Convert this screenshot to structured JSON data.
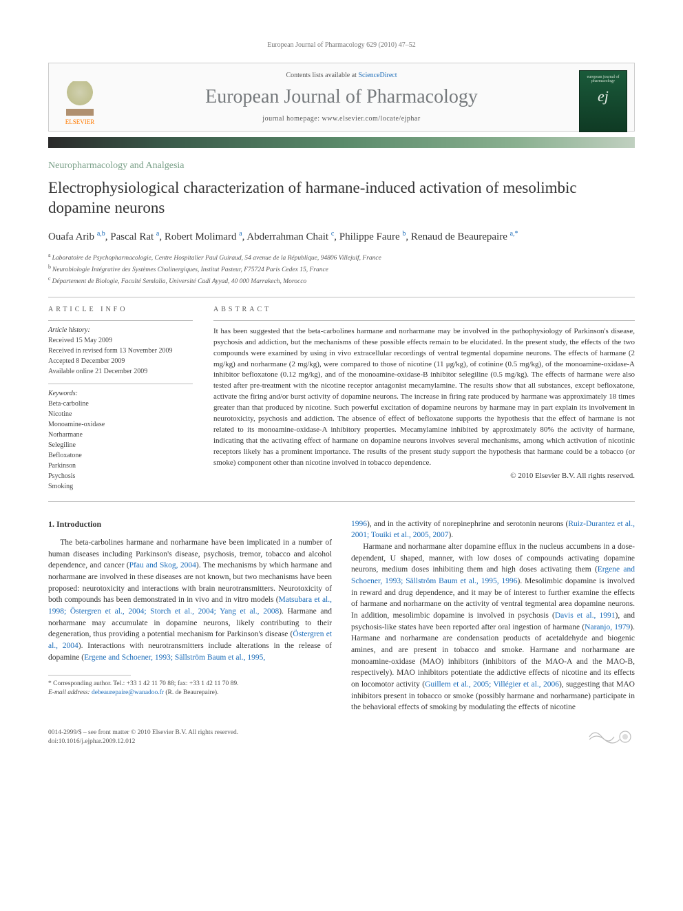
{
  "running_header": "European Journal of Pharmacology 629 (2010) 47–52",
  "banner": {
    "contents_prefix": "Contents lists available at ",
    "contents_link": "ScienceDirect",
    "journal": "European Journal of Pharmacology",
    "homepage_prefix": "journal homepage: ",
    "homepage": "www.elsevier.com/locate/ejphar",
    "publisher": "ELSEVIER",
    "cover_text_top": "european journal of",
    "cover_text_mid": "pharmacology"
  },
  "section_label": "Neuropharmacology and Analgesia",
  "title": "Electrophysiological characterization of harmane-induced activation of mesolimbic dopamine neurons",
  "authors": [
    {
      "name": "Ouafa Arib",
      "marks": "a,b"
    },
    {
      "name": "Pascal Rat",
      "marks": "a"
    },
    {
      "name": "Robert Molimard",
      "marks": "a"
    },
    {
      "name": "Abderrahman Chait",
      "marks": "c"
    },
    {
      "name": "Philippe Faure",
      "marks": "b"
    },
    {
      "name": "Renaud de Beaurepaire",
      "marks": "a,*"
    }
  ],
  "affiliations": [
    {
      "mark": "a",
      "text": "Laboratoire de Psychopharmacologie, Centre Hospitalier Paul Guiraud, 54 avenue de la République, 94806 Villejuif, France"
    },
    {
      "mark": "b",
      "text": "Neurobiologie Intégrative des Systèmes Cholinergiques, Institut Pasteur, F75724 Paris Cedex 15, France"
    },
    {
      "mark": "c",
      "text": "Département de Biologie, Faculté Semlalia, Université Cadi Ayyad, 40 000 Marrakech, Morocco"
    }
  ],
  "article_info": {
    "heading": "ARTICLE INFO",
    "history_label": "Article history:",
    "history": [
      "Received 15 May 2009",
      "Received in revised form 13 November 2009",
      "Accepted 8 December 2009",
      "Available online 21 December 2009"
    ],
    "keywords_label": "Keywords:",
    "keywords": [
      "Beta-carboline",
      "Nicotine",
      "Monoamine-oxidase",
      "Norharmane",
      "Selegiline",
      "Befloxatone",
      "Parkinson",
      "Psychosis",
      "Smoking"
    ]
  },
  "abstract": {
    "heading": "ABSTRACT",
    "text": "It has been suggested that the beta-carbolines harmane and norharmane may be involved in the pathophysiology of Parkinson's disease, psychosis and addiction, but the mechanisms of these possible effects remain to be elucidated. In the present study, the effects of the two compounds were examined by using in vivo extracellular recordings of ventral tegmental dopamine neurons. The effects of harmane (2 mg/kg) and norharmane (2 mg/kg), were compared to those of nicotine (11 μg/kg), of cotinine (0.5 mg/kg), of the monoamine-oxidase-A inhibitor befloxatone (0.12 mg/kg), and of the monoamine-oxidase-B inhibitor selegiline (0.5 mg/kg). The effects of harmane were also tested after pre-treatment with the nicotine receptor antagonist mecamylamine. The results show that all substances, except befloxatone, activate the firing and/or burst activity of dopamine neurons. The increase in firing rate produced by harmane was approximately 18 times greater than that produced by nicotine. Such powerful excitation of dopamine neurons by harmane may in part explain its involvement in neurotoxicity, psychosis and addiction. The absence of effect of befloxatone supports the hypothesis that the effect of harmane is not related to its monoamine-oxidase-A inhibitory properties. Mecamylamine inhibited by approximately 80% the activity of harmane, indicating that the activating effect of harmane on dopamine neurons involves several mechanisms, among which activation of nicotinic receptors likely has a prominent importance. The results of the present study support the hypothesis that harmane could be a tobacco (or smoke) component other than nicotine involved in tobacco dependence.",
    "copyright": "© 2010 Elsevier B.V. All rights reserved."
  },
  "intro": {
    "heading": "1. Introduction",
    "col1_p1a": "The beta-carbolines harmane and norharmane have been implicated in a number of human diseases including Parkinson's disease, psychosis, tremor, tobacco and alcohol dependence, and cancer (",
    "col1_p1_link1": "Pfau and Skog, 2004",
    "col1_p1b": "). The mechanisms by which harmane and norharmane are involved in these diseases are not known, but two mechanisms have been proposed: neurotoxicity and interactions with brain neurotransmitters. Neurotoxicity of both compounds has been demonstrated in in vivo and in vitro models (",
    "col1_p1_link2": "Matsubara et al., 1998; Östergren et al., 2004; Storch et al., 2004; Yang et al., 2008",
    "col1_p1c": "). Harmane and norharmane may accumulate in dopamine neurons, likely contributing to their degeneration, thus providing a potential mechanism for Parkinson's disease (",
    "col1_p1_link3": "Östergren et al., 2004",
    "col1_p1d": "). Interactions with neurotransmitters include alterations in the release of dopamine (",
    "col1_p1_link4": "Ergene and Schoener, 1993; Sällström Baum et al., 1995,",
    "col2_cont_link1": "1996",
    "col2_cont_a": "), and in the activity of norepinephrine and serotonin neurons (",
    "col2_cont_link2": "Ruiz-Durantez et al., 2001; Touiki et al., 2005, 2007",
    "col2_cont_b": ").",
    "col2_p2a": "Harmane and norharmane alter dopamine efflux in the nucleus accumbens in a dose-dependent, U shaped, manner, with low doses of compounds activating dopamine neurons, medium doses inhibiting them and high doses activating them (",
    "col2_p2_link1": "Ergene and Schoener, 1993; Sällström Baum et al., 1995, 1996",
    "col2_p2b": "). Mesolimbic dopamine is involved in reward and drug dependence, and it may be of interest to further examine the effects of harmane and norharmane on the activity of ventral tegmental area dopamine neurons. In addition, mesolimbic dopamine is involved in psychosis (",
    "col2_p2_link2": "Davis et al., 1991",
    "col2_p2c": "), and psychosis-like states have been reported after oral ingestion of harmane (",
    "col2_p2_link3": "Naranjo, 1979",
    "col2_p2d": "). Harmane and norharmane are condensation products of acetaldehyde and biogenic amines, and are present in tobacco and smoke. Harmane and norharmane are monoamine-oxidase (MAO) inhibitors (inhibitors of the MAO-A and the MAO-B, respectively). MAO inhibitors potentiate the addictive effects of nicotine and its effects on locomotor activity (",
    "col2_p2_link4": "Guillem et al., 2005; Villégier et al., 2006",
    "col2_p2e": "), suggesting that MAO inhibitors present in tobacco or smoke (possibly harmane and norharmane) participate in the behavioral effects of smoking by modulating the effects of nicotine"
  },
  "footnote": {
    "corr": "* Corresponding author. Tel.: +33 1 42 11 70 88; fax: +33 1 42 11 70 89.",
    "email_label": "E-mail address: ",
    "email": "debeaurepaire@wanadoo.fr",
    "email_tail": " (R. de Beaurepaire)."
  },
  "footer": {
    "left_line1": "0014-2999/$ – see front matter © 2010 Elsevier B.V. All rights reserved.",
    "left_line2": "doi:10.1016/j.ejphar.2009.12.012"
  },
  "colors": {
    "link": "#1a6bb8",
    "section": "#7aa088",
    "orange": "#ff7a00"
  }
}
